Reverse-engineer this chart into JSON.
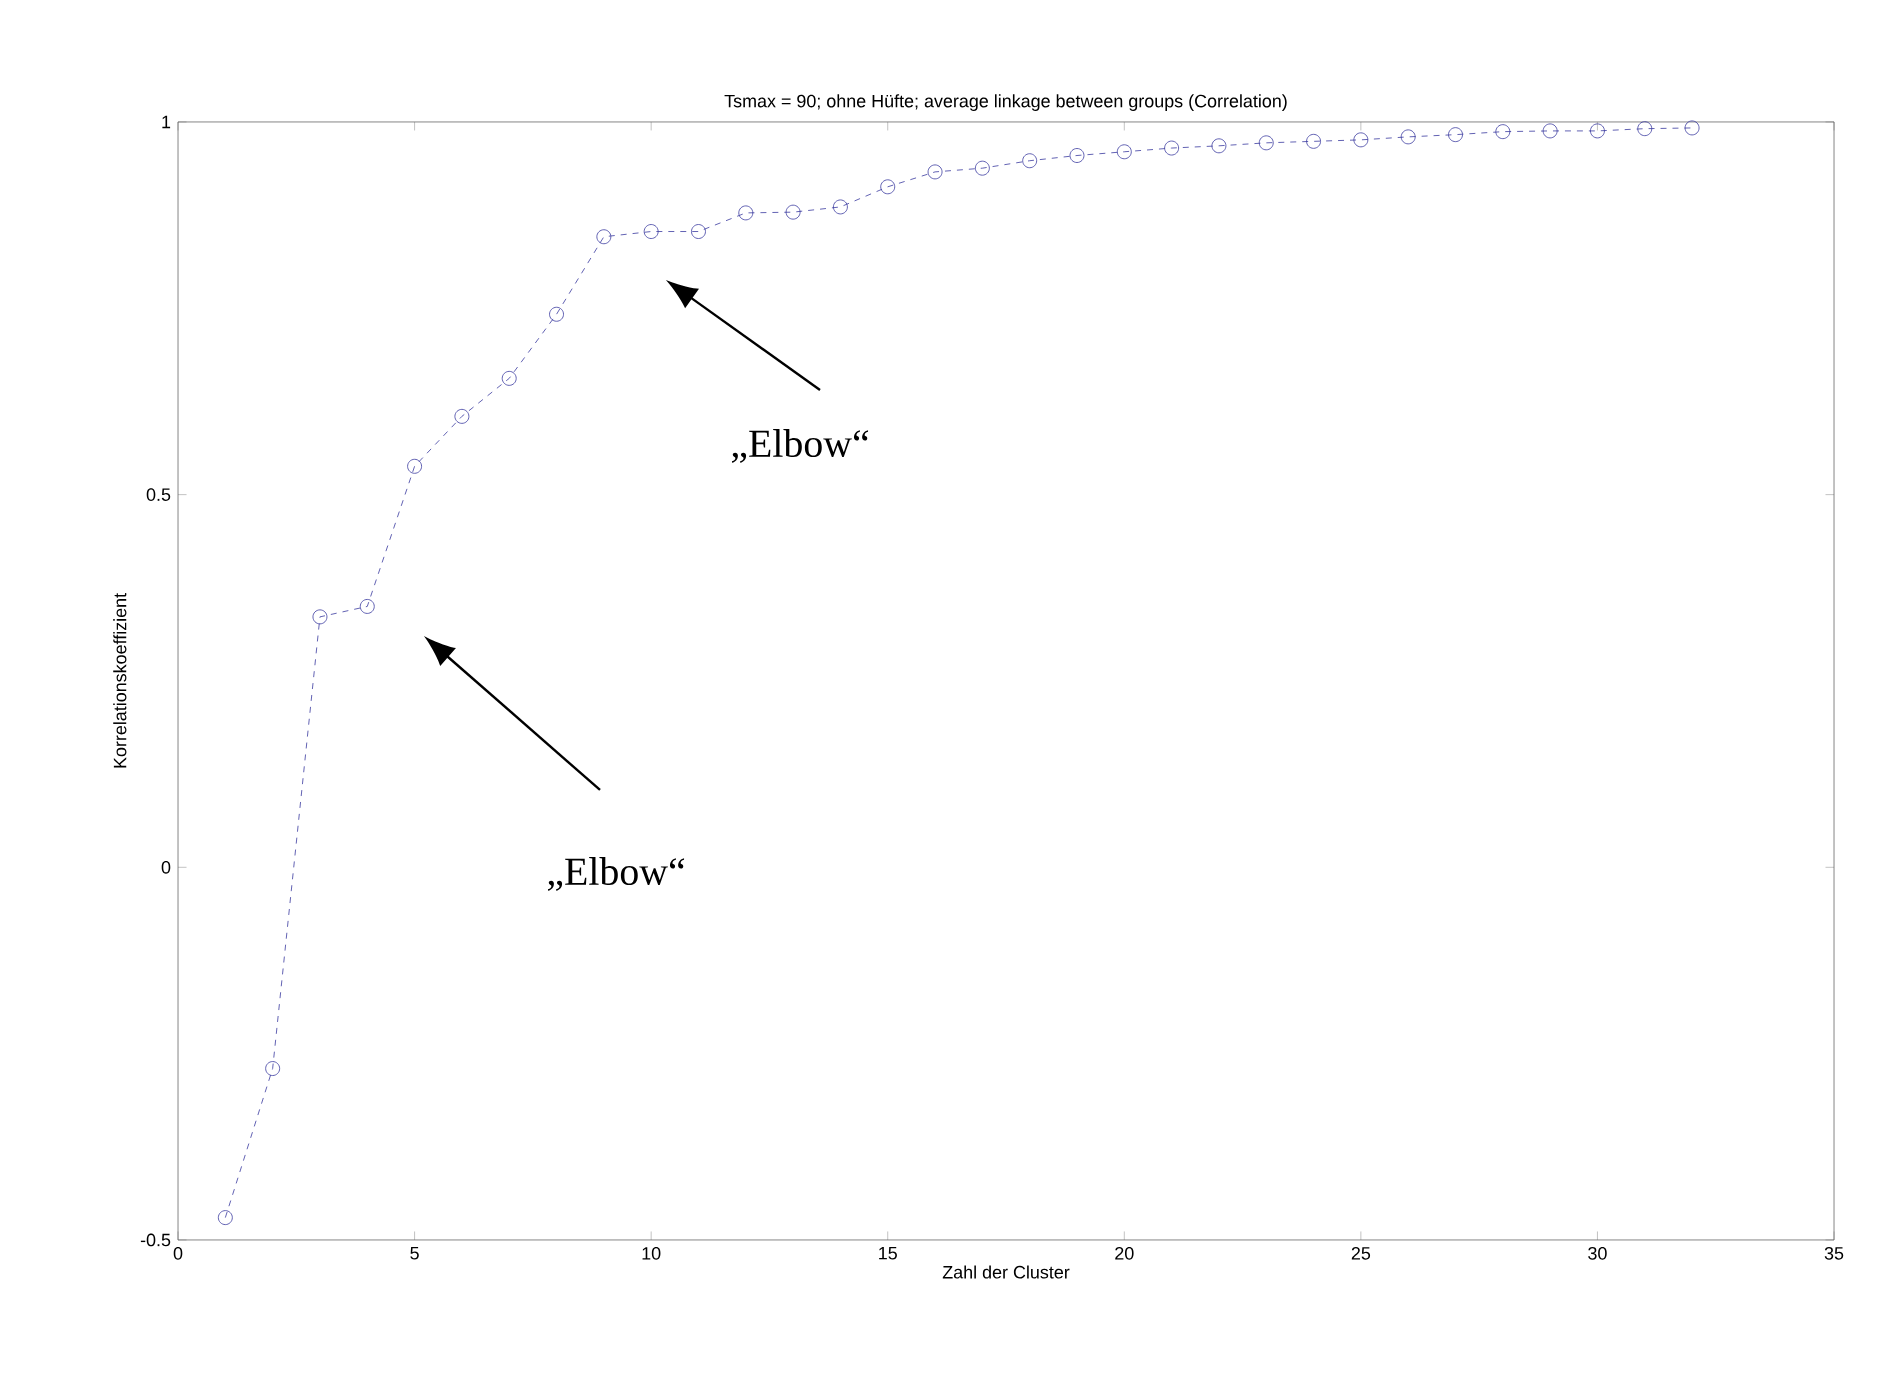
{
  "chart_data": {
    "type": "line",
    "title": "Tsmax = 90; ohne Hüfte; average linkage between groups (Correlation)",
    "xlabel": "Zahl der Cluster",
    "ylabel": "Korrelationskoeffizient",
    "x": [
      1,
      2,
      3,
      4,
      5,
      6,
      7,
      8,
      9,
      10,
      11,
      12,
      13,
      14,
      15,
      16,
      17,
      18,
      19,
      20,
      21,
      22,
      23,
      24,
      25,
      26,
      27,
      28,
      29,
      30,
      31,
      32
    ],
    "series": [
      {
        "color": "#3a3aa0",
        "values": [
          -0.47,
          -0.27,
          0.336,
          0.35,
          0.538,
          0.605,
          0.656,
          0.742,
          0.846,
          0.853,
          0.853,
          0.878,
          0.879,
          0.886,
          0.913,
          0.933,
          0.938,
          0.948,
          0.955,
          0.96,
          0.965,
          0.968,
          0.972,
          0.974,
          0.976,
          0.98,
          0.983,
          0.987,
          0.988,
          0.988,
          0.991,
          0.992
        ]
      }
    ],
    "xlim": [
      0,
      35
    ],
    "ylim": [
      -0.5,
      1
    ],
    "xticks": [
      0,
      5,
      10,
      15,
      20,
      25,
      30,
      35
    ],
    "yticks": [
      -0.5,
      0,
      0.5,
      1
    ],
    "marker": "circle",
    "line_style": "dashed",
    "grid": false,
    "annotations": [
      "„Elbow“",
      "„Elbow“"
    ]
  }
}
